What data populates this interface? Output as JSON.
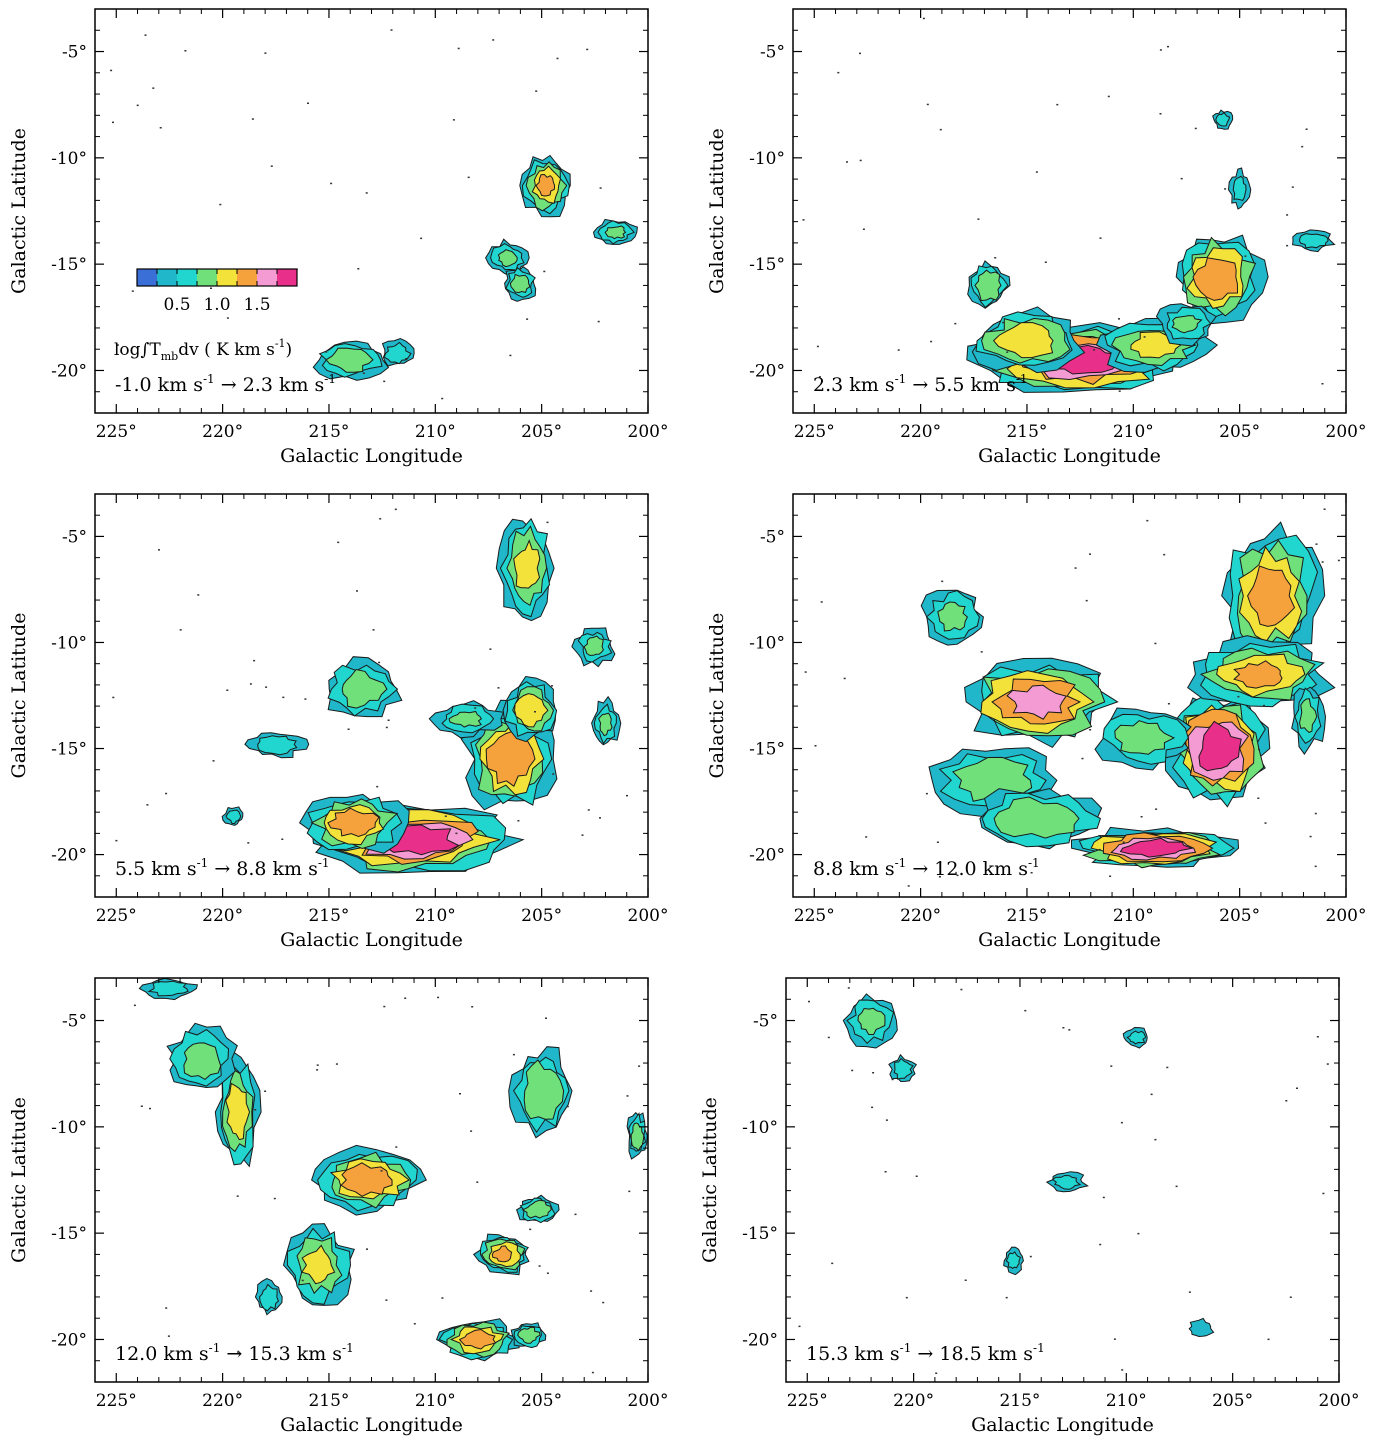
{
  "chart_data": [
    {
      "type": "heatmap",
      "panel": 1,
      "velocity_range": {
        "from": "-1.0 km s",
        "to": "2.3 km s",
        "sup": "-1",
        "arrow": "→"
      },
      "xlabel": "Galactic Longitude",
      "ylabel": "Galactic Latitude",
      "xlim": [
        226,
        200
      ],
      "ylim": [
        -22,
        -3
      ],
      "xticks": [
        "225°",
        "220°",
        "215°",
        "210°",
        "205°",
        "200°"
      ],
      "yticks": [
        "-5°",
        "-10°",
        "-15°",
        "-20°"
      ],
      "colorbar": {
        "ticks": [
          "0.5",
          "1.0",
          "1.5"
        ],
        "tick_values": [
          0.5,
          1.0,
          1.5
        ],
        "range": [
          0,
          2.0
        ],
        "label": "log∫T",
        "label_sub": "mb",
        "label_rest": "dv ( K km s",
        "label_sup": "-1",
        "label_end": ")",
        "colors": [
          "#3a6fd8",
          "#1fb7c9",
          "#22d6d0",
          "#6fe07a",
          "#f2e23a",
          "#f6a23c",
          "#f59bd3",
          "#e8308a"
        ]
      },
      "clouds": [
        {
          "l": 204.8,
          "b": -11.3,
          "sl": 0.7,
          "sb": 0.9,
          "peak": 1.1
        },
        {
          "l": 206.6,
          "b": -14.7,
          "sl": 0.6,
          "sb": 0.5,
          "peak": 0.6
        },
        {
          "l": 206.0,
          "b": -15.9,
          "sl": 0.5,
          "sb": 0.5,
          "peak": 0.7
        },
        {
          "l": 201.5,
          "b": -13.5,
          "sl": 0.6,
          "sb": 0.4,
          "peak": 0.6
        },
        {
          "l": 214.0,
          "b": -19.5,
          "sl": 1.1,
          "sb": 0.6,
          "peak": 0.7
        },
        {
          "l": 211.8,
          "b": -19.2,
          "sl": 0.5,
          "sb": 0.4,
          "peak": 0.5
        }
      ]
    },
    {
      "type": "heatmap",
      "panel": 2,
      "velocity_range": {
        "from": "2.3 km s",
        "to": "5.5 km s",
        "sup": "-1",
        "arrow": "→"
      },
      "xlabel": "Galactic Longitude",
      "ylabel": "Galactic Latitude",
      "xlim": [
        226,
        200
      ],
      "ylim": [
        -22,
        -3
      ],
      "xticks": [
        "225°",
        "220°",
        "215°",
        "210°",
        "205°",
        "200°"
      ],
      "yticks": [
        "-5°",
        "-10°",
        "-15°",
        "-20°"
      ],
      "clouds": [
        {
          "l": 212.5,
          "b": -19.5,
          "sl": 3.0,
          "sb": 1.0,
          "peak": 1.7
        },
        {
          "l": 215.0,
          "b": -18.6,
          "sl": 1.6,
          "sb": 0.9,
          "peak": 1.0
        },
        {
          "l": 209.0,
          "b": -18.8,
          "sl": 1.6,
          "sb": 0.8,
          "peak": 0.9
        },
        {
          "l": 206.0,
          "b": -15.6,
          "sl": 1.3,
          "sb": 1.3,
          "peak": 1.3
        },
        {
          "l": 216.8,
          "b": -16.0,
          "sl": 0.6,
          "sb": 0.7,
          "peak": 0.8
        },
        {
          "l": 207.5,
          "b": -17.8,
          "sl": 0.9,
          "sb": 0.6,
          "peak": 0.6
        },
        {
          "l": 201.5,
          "b": -13.9,
          "sl": 0.6,
          "sb": 0.3,
          "peak": 0.5
        },
        {
          "l": 205.0,
          "b": -11.5,
          "sl": 0.3,
          "sb": 0.6,
          "peak": 0.4
        },
        {
          "l": 205.8,
          "b": -8.2,
          "sl": 0.3,
          "sb": 0.3,
          "peak": 0.4
        }
      ]
    },
    {
      "type": "heatmap",
      "panel": 3,
      "velocity_range": {
        "from": "5.5 km s",
        "to": "8.8 km s",
        "sup": "-1",
        "arrow": "→"
      },
      "xlabel": "Galactic Longitude",
      "ylabel": "Galactic Latitude",
      "xlim": [
        226,
        200
      ],
      "ylim": [
        -22,
        -3
      ],
      "xticks": [
        "225°",
        "220°",
        "215°",
        "210°",
        "205°",
        "200°"
      ],
      "yticks": [
        "-5°",
        "-10°",
        "-15°",
        "-20°"
      ],
      "clouds": [
        {
          "l": 211.0,
          "b": -19.3,
          "sl": 2.8,
          "sb": 1.0,
          "peak": 1.8
        },
        {
          "l": 213.8,
          "b": -18.5,
          "sl": 1.5,
          "sb": 0.9,
          "peak": 1.2
        },
        {
          "l": 206.5,
          "b": -15.5,
          "sl": 1.3,
          "sb": 1.5,
          "peak": 1.3
        },
        {
          "l": 205.5,
          "b": -13.2,
          "sl": 0.8,
          "sb": 0.9,
          "peak": 1.0
        },
        {
          "l": 205.7,
          "b": -6.5,
          "sl": 0.8,
          "sb": 1.6,
          "peak": 0.9
        },
        {
          "l": 213.5,
          "b": -12.2,
          "sl": 1.2,
          "sb": 0.9,
          "peak": 0.7
        },
        {
          "l": 208.5,
          "b": -13.6,
          "sl": 1.0,
          "sb": 0.5,
          "peak": 0.6
        },
        {
          "l": 202.5,
          "b": -10.2,
          "sl": 0.6,
          "sb": 0.6,
          "peak": 0.6
        },
        {
          "l": 202.0,
          "b": -13.8,
          "sl": 0.4,
          "sb": 0.7,
          "peak": 0.6
        },
        {
          "l": 217.5,
          "b": -14.8,
          "sl": 0.9,
          "sb": 0.4,
          "peak": 0.5
        },
        {
          "l": 219.5,
          "b": -18.2,
          "sl": 0.3,
          "sb": 0.3,
          "peak": 0.4
        }
      ]
    },
    {
      "type": "heatmap",
      "panel": 4,
      "velocity_range": {
        "from": "8.8 km s",
        "to": "12.0 km s",
        "sup": "-1",
        "arrow": "→"
      },
      "xlabel": "Galactic Longitude",
      "ylabel": "Galactic Latitude",
      "xlim": [
        226,
        200
      ],
      "ylim": [
        -22,
        -3
      ],
      "xticks": [
        "225°",
        "220°",
        "215°",
        "210°",
        "205°",
        "200°"
      ],
      "yticks": [
        "-5°",
        "-10°",
        "-15°",
        "-20°"
      ],
      "clouds": [
        {
          "l": 209.0,
          "b": -19.7,
          "sl": 2.2,
          "sb": 0.6,
          "peak": 1.8
        },
        {
          "l": 206.0,
          "b": -15.0,
          "sl": 1.4,
          "sb": 1.6,
          "peak": 1.8
        },
        {
          "l": 203.5,
          "b": -7.8,
          "sl": 1.4,
          "sb": 2.0,
          "peak": 1.2
        },
        {
          "l": 214.5,
          "b": -12.8,
          "sl": 2.2,
          "sb": 1.2,
          "peak": 1.4
        },
        {
          "l": 204.0,
          "b": -11.5,
          "sl": 2.0,
          "sb": 1.0,
          "peak": 1.1
        },
        {
          "l": 216.5,
          "b": -16.5,
          "sl": 1.8,
          "sb": 1.0,
          "peak": 0.8
        },
        {
          "l": 214.5,
          "b": -18.3,
          "sl": 2.0,
          "sb": 0.9,
          "peak": 0.8
        },
        {
          "l": 209.5,
          "b": -14.5,
          "sl": 1.4,
          "sb": 0.9,
          "peak": 0.7
        },
        {
          "l": 218.5,
          "b": -8.8,
          "sl": 0.9,
          "sb": 0.9,
          "peak": 0.6
        },
        {
          "l": 201.8,
          "b": -13.5,
          "sl": 0.5,
          "sb": 1.0,
          "peak": 0.6
        }
      ]
    },
    {
      "type": "heatmap",
      "panel": 5,
      "velocity_range": {
        "from": "12.0 km s",
        "to": "15.3 km s",
        "sup": "-1",
        "arrow": "→"
      },
      "xlabel": "Galactic Longitude",
      "ylabel": "Galactic Latitude",
      "xlim": [
        226,
        200
      ],
      "ylim": [
        -22,
        -3
      ],
      "xticks": [
        "225°",
        "220°",
        "215°",
        "210°",
        "205°",
        "200°"
      ],
      "yticks": [
        "-5°",
        "-10°",
        "-15°",
        "-20°"
      ],
      "clouds": [
        {
          "l": 213.2,
          "b": -12.5,
          "sl": 1.6,
          "sb": 0.9,
          "peak": 1.3
        },
        {
          "l": 219.3,
          "b": -9.3,
          "sl": 0.6,
          "sb": 1.6,
          "peak": 1.0
        },
        {
          "l": 221.0,
          "b": -6.8,
          "sl": 1.0,
          "sb": 1.0,
          "peak": 0.7
        },
        {
          "l": 215.5,
          "b": -16.5,
          "sl": 1.0,
          "sb": 1.2,
          "peak": 0.9
        },
        {
          "l": 208.0,
          "b": -20.0,
          "sl": 1.1,
          "sb": 0.6,
          "peak": 1.2
        },
        {
          "l": 206.8,
          "b": -16.0,
          "sl": 0.8,
          "sb": 0.6,
          "peak": 1.1
        },
        {
          "l": 205.0,
          "b": -8.3,
          "sl": 0.9,
          "sb": 1.3,
          "peak": 0.8
        },
        {
          "l": 205.2,
          "b": -13.9,
          "sl": 0.6,
          "sb": 0.4,
          "peak": 0.8
        },
        {
          "l": 205.6,
          "b": -19.8,
          "sl": 0.5,
          "sb": 0.4,
          "peak": 0.7
        },
        {
          "l": 200.5,
          "b": -10.4,
          "sl": 0.3,
          "sb": 0.7,
          "peak": 0.7
        },
        {
          "l": 217.8,
          "b": -18.0,
          "sl": 0.4,
          "sb": 0.5,
          "peak": 0.5
        },
        {
          "l": 222.5,
          "b": -3.5,
          "sl": 0.8,
          "sb": 0.3,
          "peak": 0.5
        }
      ]
    },
    {
      "type": "heatmap",
      "panel": 6,
      "velocity_range": {
        "from": "15.3 km s",
        "to": "18.5 km s",
        "sup": "-1",
        "arrow": "→"
      },
      "xlabel": "Galactic Longitude",
      "ylabel": "Galactic Latitude",
      "xlim": [
        226,
        200
      ],
      "ylim": [
        -22,
        -3
      ],
      "xticks": [
        "225°",
        "220°",
        "215°",
        "210°",
        "205°",
        "200°"
      ],
      "yticks": [
        "-5°",
        "-10°",
        "-15°",
        "-20°"
      ],
      "clouds": [
        {
          "l": 222.0,
          "b": -5.0,
          "sl": 0.8,
          "sb": 0.8,
          "peak": 0.6
        },
        {
          "l": 220.5,
          "b": -7.3,
          "sl": 0.4,
          "sb": 0.4,
          "peak": 0.5
        },
        {
          "l": 212.8,
          "b": -12.6,
          "sl": 0.6,
          "sb": 0.3,
          "peak": 0.4
        },
        {
          "l": 209.5,
          "b": -5.8,
          "sl": 0.4,
          "sb": 0.3,
          "peak": 0.4
        },
        {
          "l": 215.3,
          "b": -16.3,
          "sl": 0.3,
          "sb": 0.4,
          "peak": 0.4
        },
        {
          "l": 206.5,
          "b": -19.5,
          "sl": 0.4,
          "sb": 0.3,
          "peak": 0.3
        }
      ]
    }
  ]
}
